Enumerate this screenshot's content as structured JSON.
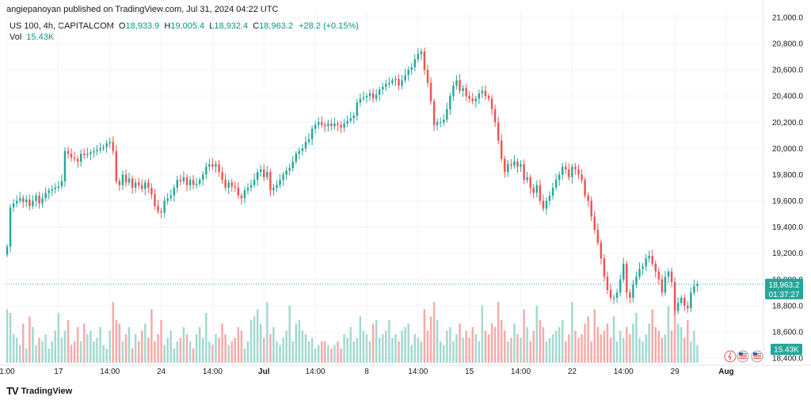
{
  "publisher_line": "angiepanoyan published on TradingView.com, Jul 31, 2024 04:22 UTC",
  "legend": {
    "symbol": "US 100, 4h, CAPITALCOM",
    "o_label": "O",
    "o_value": "18,933.9",
    "h_label": "H",
    "h_value": "19,005.4",
    "l_label": "L",
    "l_value": "18,932.4",
    "c_label": "C",
    "c_value": "18,963.2",
    "change": "+28.2 (+0.15%)",
    "vol_label": "Vol",
    "vol_value": "15.43K"
  },
  "price_tag": {
    "price": "18,963.2",
    "countdown": "01:37:27"
  },
  "volume_tag": "15.43K",
  "footer": {
    "logo": "TV",
    "brand": "TradingView"
  },
  "colors": {
    "up": "#26a69a",
    "down": "#ef5350",
    "up_vol": "#a1d8d0",
    "down_vol": "#f7a9a7",
    "grid": "#f0f3fa",
    "price_line": "#26a69a"
  },
  "icons": [
    "flash-icon",
    "us-flag-icon",
    "us-flag-icon"
  ],
  "chart_data": {
    "type": "candlestick",
    "symbol": "US 100",
    "interval": "4h",
    "ylim": [
      18400,
      21000
    ],
    "y_ticks": [
      "18,400.0",
      "18,600.0",
      "18,800.0",
      "19,000.0",
      "19,200.0",
      "19,400.0",
      "19,600.0",
      "19,800.0",
      "20,000.0",
      "20,200.0",
      "20,400.0",
      "20,600.0",
      "20,800.0",
      "21,000.0"
    ],
    "x_ticks": [
      {
        "label": "1:00",
        "index": 0
      },
      {
        "label": "17",
        "index": 16
      },
      {
        "label": "14:00",
        "index": 32
      },
      {
        "label": "24",
        "index": 48
      },
      {
        "label": "14:00",
        "index": 64
      },
      {
        "label": "Jul",
        "index": 80
      },
      {
        "label": "14:00",
        "index": 96
      },
      {
        "label": "8",
        "index": 112
      },
      {
        "label": "14:00",
        "index": 128
      },
      {
        "label": "15",
        "index": 144
      },
      {
        "label": "14:00",
        "index": 160
      },
      {
        "label": "22",
        "index": 176
      },
      {
        "label": "14:00",
        "index": 192
      },
      {
        "label": "29",
        "index": 208
      },
      {
        "label": "Aug",
        "index": 224
      }
    ],
    "bar_count": 226,
    "last_price": 18963.2,
    "closes": [
      19250,
      19550,
      19580,
      19600,
      19620,
      19590,
      19610,
      19560,
      19600,
      19640,
      19580,
      19620,
      19660,
      19680,
      19690,
      19700,
      19710,
      19750,
      19980,
      19960,
      19930,
      19920,
      19900,
      19960,
      19950,
      19960,
      19970,
      19980,
      19990,
      20000,
      20010,
      20040,
      20050,
      19980,
      19750,
      19720,
      19800,
      19740,
      19770,
      19700,
      19740,
      19720,
      19690,
      19740,
      19700,
      19650,
      19560,
      19520,
      19510,
      19600,
      19620,
      19640,
      19700,
      19760,
      19750,
      19780,
      19720,
      19760,
      19720,
      19730,
      19760,
      19800,
      19860,
      19880,
      19860,
      19880,
      19820,
      19760,
      19700,
      19740,
      19710,
      19700,
      19640,
      19620,
      19680,
      19700,
      19720,
      19760,
      19820,
      19840,
      19780,
      19820,
      19680,
      19700,
      19720,
      19760,
      19800,
      19830,
      19850,
      19900,
      19960,
      19980,
      20000,
      20050,
      20070,
      20150,
      20180,
      20200,
      20180,
      20170,
      20190,
      20170,
      20190,
      20180,
      20160,
      20190,
      20210,
      20230,
      20250,
      20350,
      20380,
      20390,
      20400,
      20420,
      20380,
      20410,
      20450,
      20470,
      20490,
      20500,
      20520,
      20530,
      20480,
      20520,
      20560,
      20600,
      20620,
      20680,
      20720,
      20740,
      20600,
      20500,
      20360,
      20180,
      20200,
      20200,
      20220,
      20300,
      20400,
      20480,
      20520,
      20440,
      20460,
      20400,
      20380,
      20360,
      20380,
      20420,
      20440,
      20400,
      20380,
      20300,
      20200,
      20060,
      19920,
      19820,
      19880,
      19870,
      19900,
      19860,
      19880,
      19760,
      19780,
      19700,
      19660,
      19720,
      19600,
      19540,
      19600,
      19640,
      19700,
      19760,
      19800,
      19860,
      19840,
      19780,
      19860,
      19840,
      19800,
      19760,
      19640,
      19600,
      19480,
      19380,
      19280,
      19160,
      19020,
      18920,
      18860,
      18860,
      18900,
      19000,
      19120,
      18900,
      18860,
      18960,
      19020,
      19080,
      19100,
      19160,
      19180,
      19120,
      19060,
      19000,
      18900,
      19020,
      19060,
      18980,
      18760,
      18820,
      18860,
      18800,
      18780,
      18900,
      18950,
      18963
    ],
    "volume_relative": [
      0.75,
      0.7,
      0.4,
      0.35,
      0.25,
      0.55,
      0.2,
      0.65,
      0.5,
      0.25,
      0.35,
      0.3,
      0.4,
      0.2,
      0.3,
      0.45,
      0.7,
      0.35,
      0.45,
      0.6,
      0.25,
      0.3,
      0.5,
      0.3,
      0.55,
      0.4,
      0.45,
      0.3,
      0.35,
      0.5,
      0.25,
      0.2,
      0.45,
      0.85,
      0.6,
      0.55,
      0.3,
      0.4,
      0.5,
      0.2,
      0.4,
      0.3,
      0.45,
      0.55,
      0.35,
      0.75,
      0.3,
      0.4,
      0.6,
      0.25,
      0.35,
      0.45,
      0.2,
      0.3,
      0.35,
      0.5,
      0.4,
      0.3,
      0.2,
      0.4,
      0.5,
      0.35,
      0.7,
      0.3,
      0.25,
      0.4,
      0.35,
      0.55,
      0.4,
      0.25,
      0.3,
      0.35,
      0.5,
      0.45,
      0.2,
      0.3,
      0.6,
      0.65,
      0.75,
      0.55,
      0.35,
      0.85,
      0.4,
      0.5,
      0.3,
      0.25,
      0.35,
      0.45,
      0.8,
      0.3,
      0.55,
      0.6,
      0.45,
      0.4,
      0.3,
      0.35,
      0.2,
      0.25,
      0.3,
      0.3,
      0.25,
      0.2,
      0.25,
      0.3,
      0.2,
      0.4,
      0.35,
      0.5,
      0.3,
      0.35,
      0.65,
      0.45,
      0.4,
      0.3,
      0.55,
      0.6,
      0.35,
      0.4,
      0.45,
      0.6,
      0.35,
      0.4,
      0.3,
      0.45,
      0.5,
      0.55,
      0.25,
      0.4,
      0.35,
      0.3,
      0.75,
      0.45,
      0.65,
      0.85,
      0.6,
      0.3,
      0.25,
      0.45,
      0.5,
      0.3,
      0.4,
      0.55,
      0.35,
      0.45,
      0.35,
      0.5,
      0.4,
      0.3,
      0.8,
      0.45,
      0.4,
      0.55,
      0.5,
      0.85,
      0.6,
      0.45,
      0.3,
      0.35,
      0.55,
      0.4,
      0.35,
      0.75,
      0.5,
      0.3,
      0.45,
      0.8,
      0.6,
      0.5,
      0.3,
      0.35,
      0.4,
      0.45,
      0.5,
      0.6,
      0.3,
      0.4,
      0.85,
      0.45,
      0.35,
      0.4,
      0.55,
      0.65,
      0.3,
      0.75,
      0.5,
      0.4,
      0.45,
      0.55,
      0.35,
      0.65,
      0.3,
      0.45,
      0.35,
      0.5,
      0.4,
      0.55,
      0.7,
      0.35,
      0.3,
      0.4,
      0.55,
      0.75,
      0.5,
      0.45,
      0.35,
      0.4,
      0.8,
      0.45,
      0.95,
      0.55,
      0.5,
      0.35,
      0.6,
      0.3,
      0.45,
      0.25
    ]
  }
}
